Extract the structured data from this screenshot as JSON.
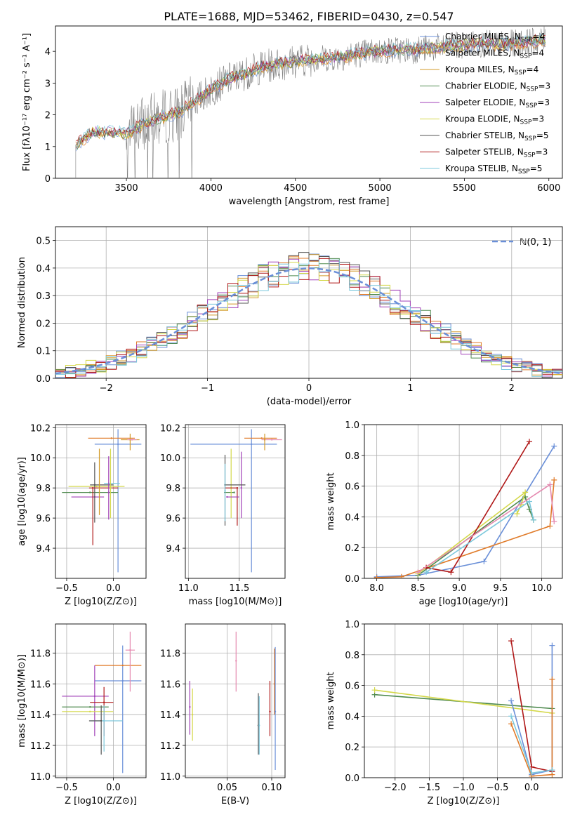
{
  "figure": {
    "title": "PLATE=1688, MJD=53462, FIBERID=0430, z=0.547"
  },
  "colors": {
    "Chabrier MILES": "#6a8fd8",
    "Salpeter MILES": "#e07b2a",
    "Kroupa MILES": "#d39b2a",
    "Chabrier ELODIE": "#4f8a4f",
    "Salpeter ELODIE": "#a040b8",
    "Kroupa ELODIE": "#d4d84a",
    "Chabrier STELIB": "#555555",
    "Salpeter STELIB": "#b01818",
    "Kroupa STELIB": "#7cc8dc",
    "gauss": "#6a8fd8",
    "pink": "#e58ab0"
  },
  "chart_data": [
    {
      "id": "spectrum",
      "type": "line",
      "xlabel": "wavelength [Angstrom, rest frame]",
      "ylabel": "Flux [fλ10⁻¹⁷ erg cm⁻² s⁻¹ A⁻¹]",
      "xlim": [
        3080,
        6080
      ],
      "ylim": [
        0,
        4.8
      ],
      "xticks": [
        3500,
        4000,
        4500,
        5000,
        5500,
        6000
      ],
      "yticks": [
        0,
        1,
        2,
        3,
        4
      ],
      "legend": [
        "Chabrier MILES, N_SSP=4",
        "Salpeter MILES, N_SSP=4",
        "Kroupa MILES, N_SSP=4",
        "Chabrier ELODIE, N_SSP=3",
        "Salpeter ELODIE, N_SSP=3",
        "Kroupa ELODIE, N_SSP=3",
        "Chabrier STELIB, N_SSP=5",
        "Salpeter STELIB, N_SSP=3",
        "Kroupa STELIB, N_SSP=5"
      ],
      "legend_labels": [
        {
          "pre": "Chabrier MILES, N",
          "sub": "SSP",
          "post": "=4"
        },
        {
          "pre": "Salpeter MILES, N",
          "sub": "SSP",
          "post": "=4"
        },
        {
          "pre": "Kroupa MILES, N",
          "sub": "SSP",
          "post": "=4"
        },
        {
          "pre": "Chabrier ELODIE, N",
          "sub": "SSP",
          "post": "=3"
        },
        {
          "pre": "Salpeter ELODIE, N",
          "sub": "SSP",
          "post": "=3"
        },
        {
          "pre": "Kroupa ELODIE, N",
          "sub": "SSP",
          "post": "=3"
        },
        {
          "pre": "Chabrier STELIB, N",
          "sub": "SSP",
          "post": "=5"
        },
        {
          "pre": "Salpeter STELIB, N",
          "sub": "SSP",
          "post": "=3"
        },
        {
          "pre": "Kroupa STELIB, N",
          "sub": "SSP",
          "post": "=5"
        }
      ],
      "legend_loc": "upper right",
      "continuum": [
        [
          3200,
          1.05
        ],
        [
          3300,
          1.45
        ],
        [
          3400,
          1.45
        ],
        [
          3500,
          1.4
        ],
        [
          3600,
          1.7
        ],
        [
          3700,
          1.9
        ],
        [
          3800,
          2.05
        ],
        [
          3900,
          2.4
        ],
        [
          4000,
          2.8
        ],
        [
          4100,
          3.1
        ],
        [
          4200,
          3.3
        ],
        [
          4300,
          3.5
        ],
        [
          4400,
          3.6
        ],
        [
          4500,
          3.7
        ],
        [
          4600,
          3.75
        ],
        [
          4700,
          3.8
        ],
        [
          4800,
          3.85
        ],
        [
          4900,
          3.95
        ],
        [
          5000,
          4.0
        ],
        [
          5100,
          4.05
        ],
        [
          5200,
          4.05
        ],
        [
          5300,
          4.1
        ],
        [
          5400,
          4.15
        ],
        [
          5500,
          4.2
        ],
        [
          5600,
          4.25
        ],
        [
          5700,
          4.2
        ],
        [
          5800,
          4.25
        ],
        [
          5900,
          4.3
        ],
        [
          5980,
          4.35
        ]
      ]
    },
    {
      "id": "residuals",
      "type": "line",
      "xlabel": "(data-model)/error",
      "ylabel": "Normed distribution",
      "xlim": [
        -2.5,
        2.5
      ],
      "ylim": [
        0,
        0.55
      ],
      "xticks": [
        -2,
        -1,
        0,
        1,
        2
      ],
      "yticks": [
        0.0,
        0.1,
        0.2,
        0.3,
        0.4,
        0.5
      ],
      "legend": [
        "ℕ(0, 1)"
      ],
      "legend_loc": "upper right",
      "gaussian": {
        "mu": 0,
        "sigma": 1
      }
    },
    {
      "id": "age-vs-Z",
      "type": "scatter",
      "xlabel": "Z [log10(Z/Z⊙)]",
      "ylabel": "age  [log10(age/yr)]",
      "xlim": [
        -0.62,
        0.35
      ],
      "ylim": [
        9.2,
        10.22
      ],
      "xticks": [
        -0.5,
        0.0
      ],
      "yticks": [
        9.4,
        9.6,
        9.8,
        10.0,
        10.2
      ],
      "points": [
        {
          "model": "Chabrier MILES",
          "x": 0.05,
          "y": 10.09,
          "xerr": [
            0.25,
            0.25
          ],
          "yerr": [
            0.85,
            0.1
          ]
        },
        {
          "model": "Salpeter MILES",
          "x": -0.02,
          "y": 10.13,
          "xerr": [
            0.25,
            0.25
          ],
          "yerr": [
            0.0,
            0.0
          ]
        },
        {
          "model": "Kroupa MILES",
          "x": 0.18,
          "y": 10.12,
          "xerr": [
            0.1,
            0.1
          ],
          "yerr": [
            0.07,
            0.04
          ]
        },
        {
          "model": "Chabrier ELODIE",
          "x": -0.25,
          "y": 9.77,
          "xerr": [
            0.3,
            0.3
          ],
          "yerr": [
            0.0,
            0.0
          ]
        },
        {
          "model": "Salpeter ELODIE",
          "x": -0.2,
          "y": 9.74,
          "xerr": [
            0.25,
            0.1
          ],
          "yerr": [
            0.0,
            0.0
          ]
        },
        {
          "model": "Kroupa ELODIE",
          "x": -0.18,
          "y": 9.81,
          "xerr": [
            0.3,
            0.3
          ],
          "yerr": [
            0.0,
            0.0
          ]
        },
        {
          "model": "Chabrier STELIB",
          "x": -0.2,
          "y": 9.82,
          "xerr": [
            0.05,
            0.2
          ],
          "yerr": [
            0.25,
            0.15
          ]
        },
        {
          "model": "Salpeter STELIB",
          "x": -0.22,
          "y": 9.8,
          "xerr": [
            0.04,
            0.27
          ],
          "yerr": [
            0.38,
            0.0
          ]
        },
        {
          "model": "Kroupa STELIB",
          "x": -0.05,
          "y": 9.83,
          "xerr": [
            0.05,
            0.12
          ],
          "yerr": [
            0.0,
            0.0
          ]
        },
        {
          "model": "pink",
          "x": 0.2,
          "y": 10.12,
          "xerr": [
            0.05,
            0.05
          ],
          "yerr": [
            0.0,
            0.0
          ]
        },
        {
          "model": "Salpeter ELODIE",
          "x": -0.05,
          "y": 9.77,
          "xerr": [
            0.0,
            0.0
          ],
          "yerr": [
            0.18,
            0.24
          ]
        },
        {
          "model": "Kroupa ELODIE",
          "x": -0.03,
          "y": 9.8,
          "xerr": [
            0.0,
            0.0
          ],
          "yerr": [
            0.2,
            0.26
          ]
        },
        {
          "model": "Kroupa MILES",
          "x": -0.15,
          "y": 9.8,
          "xerr": [
            0.0,
            0.0
          ],
          "yerr": [
            0.18,
            0.26
          ]
        }
      ]
    },
    {
      "id": "age-vs-mass",
      "type": "scatter",
      "xlabel": "mass [log10(M/M⊙)]",
      "ylabel": "",
      "xlim": [
        10.97,
        11.95
      ],
      "ylim": [
        9.2,
        10.22
      ],
      "xticks": [
        11.0,
        11.5
      ],
      "yticks": [
        9.4,
        9.6,
        9.8,
        10.0,
        10.2
      ],
      "points": [
        {
          "model": "Chabrier MILES",
          "x": 11.62,
          "y": 10.09,
          "xerr": [
            0.6,
            0.25
          ],
          "yerr": [
            0.85,
            0.1
          ]
        },
        {
          "model": "Salpeter MILES",
          "x": 11.72,
          "y": 10.13,
          "xerr": [
            0.17,
            0.15
          ],
          "yerr": [
            0.0,
            0.0
          ]
        },
        {
          "model": "pink",
          "x": 11.82,
          "y": 10.12,
          "xerr": [
            0.1,
            0.1
          ],
          "yerr": [
            0.0,
            0.0
          ]
        },
        {
          "model": "Kroupa MILES",
          "x": 11.75,
          "y": 10.12,
          "xerr": [
            0.0,
            0.0
          ],
          "yerr": [
            0.07,
            0.04
          ]
        },
        {
          "model": "Chabrier ELODIE",
          "x": 11.45,
          "y": 9.77,
          "xerr": [
            0.1,
            0.0
          ],
          "yerr": [
            0.0,
            0.0
          ]
        },
        {
          "model": "Salpeter ELODIE",
          "x": 11.52,
          "y": 9.8,
          "xerr": [
            0.0,
            0.0
          ],
          "yerr": [
            0.2,
            0.24
          ]
        },
        {
          "model": "Kroupa ELODIE",
          "x": 11.42,
          "y": 9.8,
          "xerr": [
            0.0,
            0.0
          ],
          "yerr": [
            0.2,
            0.26
          ]
        },
        {
          "model": "Chabrier STELIB",
          "x": 11.36,
          "y": 9.82,
          "xerr": [
            0.0,
            0.2
          ],
          "yerr": [
            0.27,
            0.2
          ]
        },
        {
          "model": "Salpeter STELIB",
          "x": 11.48,
          "y": 9.8,
          "xerr": [
            0.12,
            0.0
          ],
          "yerr": [
            0.25,
            0.0
          ]
        },
        {
          "model": "Kroupa STELIB",
          "x": 11.36,
          "y": 9.78,
          "xerr": [
            0.0,
            0.0
          ],
          "yerr": [
            0.2,
            0.18
          ]
        },
        {
          "model": "Salpeter ELODIE",
          "x": 11.38,
          "y": 9.74,
          "xerr": [
            0.0,
            0.12
          ],
          "yerr": [
            0.0,
            0.0
          ]
        }
      ]
    },
    {
      "id": "massweight-vs-age",
      "type": "line",
      "xlabel": "age  [log10(age/yr)]",
      "ylabel": "mass weight",
      "xlim": [
        7.85,
        10.25
      ],
      "ylim": [
        0,
        1.0
      ],
      "xticks": [
        8.0,
        8.5,
        9.0,
        9.5,
        10.0
      ],
      "yticks": [
        0.0,
        0.2,
        0.4,
        0.6,
        0.8,
        1.0
      ],
      "series": [
        {
          "name": "Chabrier MILES",
          "x": [
            8.0,
            8.5,
            9.3,
            10.15
          ],
          "y": [
            0.01,
            0.02,
            0.11,
            0.86
          ]
        },
        {
          "name": "Salpeter MILES",
          "x": [
            8.0,
            8.3,
            10.1,
            10.15
          ],
          "y": [
            0.005,
            0.01,
            0.34,
            0.64
          ]
        },
        {
          "name": "Chabrier ELODIE",
          "x": [
            8.5,
            9.8,
            9.85,
            9.9
          ],
          "y": [
            0.02,
            0.53,
            0.45,
            0.38
          ]
        },
        {
          "name": "Kroupa ELODIE",
          "x": [
            8.5,
            9.8,
            9.75,
            9.7
          ],
          "y": [
            0.03,
            0.56,
            0.48,
            0.42
          ]
        },
        {
          "name": "Salpeter STELIB",
          "x": [
            8.6,
            8.9,
            9.85
          ],
          "y": [
            0.07,
            0.04,
            0.89
          ]
        },
        {
          "name": "Kroupa STELIB",
          "x": [
            8.6,
            9.85,
            9.9
          ],
          "y": [
            0.04,
            0.5,
            0.38
          ]
        },
        {
          "name": "pink",
          "x": [
            8.5,
            10.1,
            10.15
          ],
          "y": [
            0.04,
            0.61,
            0.37
          ]
        }
      ]
    },
    {
      "id": "mass-vs-Z",
      "type": "scatter",
      "xlabel": "Z [log10(Z/Z⊙)]",
      "ylabel": "mass [log10(M/M⊙)]",
      "xlim": [
        -0.62,
        0.35
      ],
      "ylim": [
        10.99,
        11.99
      ],
      "xticks": [
        -0.5,
        0.0
      ],
      "yticks": [
        11.0,
        11.2,
        11.4,
        11.6,
        11.8
      ],
      "points": [
        {
          "model": "Chabrier MILES",
          "x": 0.1,
          "y": 11.62,
          "xerr": [
            0.3,
            0.2
          ],
          "yerr": [
            0.6,
            0.23
          ]
        },
        {
          "model": "Salpeter MILES",
          "x": 0.1,
          "y": 11.72,
          "xerr": [
            0.3,
            0.2
          ],
          "yerr": [
            0.0,
            0.0
          ]
        },
        {
          "model": "pink",
          "x": 0.18,
          "y": 11.82,
          "xerr": [
            0.05,
            0.05
          ],
          "yerr": [
            0.27,
            0.12
          ]
        },
        {
          "model": "Salpeter ELODIE",
          "x": -0.2,
          "y": 11.52,
          "xerr": [
            0.35,
            0.15
          ],
          "yerr": [
            0.26,
            0.2
          ]
        },
        {
          "model": "Chabrier ELODIE",
          "x": -0.25,
          "y": 11.45,
          "xerr": [
            0.3,
            0.2
          ],
          "yerr": [
            0.0,
            0.0
          ]
        },
        {
          "model": "Kroupa ELODIE",
          "x": -0.25,
          "y": 11.42,
          "xerr": [
            0.3,
            0.25
          ],
          "yerr": [
            0.0,
            0.0
          ]
        },
        {
          "model": "Salpeter STELIB",
          "x": -0.1,
          "y": 11.48,
          "xerr": [
            0.15,
            0.1
          ],
          "yerr": [
            0.22,
            0.1
          ]
        },
        {
          "model": "Kroupa STELIB",
          "x": -0.1,
          "y": 11.36,
          "xerr": [
            0.15,
            0.2
          ],
          "yerr": [
            0.2,
            0.1
          ]
        },
        {
          "model": "Chabrier STELIB",
          "x": -0.13,
          "y": 11.36,
          "xerr": [
            0.13,
            0.0
          ],
          "yerr": [
            0.22,
            0.1
          ]
        }
      ]
    },
    {
      "id": "mass-vs-ebv",
      "type": "scatter",
      "xlabel": "E(B-V)",
      "ylabel": "",
      "xlim": [
        0.003,
        0.115
      ],
      "ylim": [
        10.99,
        11.99
      ],
      "xticks": [
        0.05,
        0.1
      ],
      "yticks": [
        11.0,
        11.2,
        11.4,
        11.6,
        11.8
      ],
      "points": [
        {
          "model": "Salpeter ELODIE",
          "x": 0.008,
          "y": 11.45,
          "xerr": [
            0.0,
            0.0
          ],
          "yerr": [
            0.18,
            0.17
          ]
        },
        {
          "model": "Kroupa ELODIE",
          "x": 0.011,
          "y": 11.4,
          "xerr": [
            0.0,
            0.0
          ],
          "yerr": [
            0.17,
            0.17
          ]
        },
        {
          "model": "pink",
          "x": 0.06,
          "y": 11.75,
          "xerr": [
            0.0,
            0.0
          ],
          "yerr": [
            0.2,
            0.19
          ]
        },
        {
          "model": "Chabrier STELIB",
          "x": 0.085,
          "y": 11.33,
          "xerr": [
            0.0,
            0.0
          ],
          "yerr": [
            0.19,
            0.21
          ]
        },
        {
          "model": "Kroupa STELIB",
          "x": 0.086,
          "y": 11.33,
          "xerr": [
            0.0,
            0.0
          ],
          "yerr": [
            0.19,
            0.19
          ]
        },
        {
          "model": "Salpeter STELIB",
          "x": 0.098,
          "y": 11.42,
          "xerr": [
            0.0,
            0.0
          ],
          "yerr": [
            0.16,
            0.2
          ]
        },
        {
          "model": "Salpeter MILES",
          "x": 0.103,
          "y": 11.6,
          "xerr": [
            0.0,
            0.0
          ],
          "yerr": [
            0.2,
            0.23
          ]
        },
        {
          "model": "Chabrier MILES",
          "x": 0.104,
          "y": 11.42,
          "xerr": [
            0.0,
            0.0
          ],
          "yerr": [
            0.38,
            0.42
          ]
        }
      ]
    },
    {
      "id": "massweight-vs-Z",
      "type": "line",
      "xlabel": "Z [log10(Z/Z⊙)]",
      "ylabel": "mass weight",
      "xlim": [
        -2.45,
        0.45
      ],
      "ylim": [
        0,
        1.0
      ],
      "xticks": [
        -2.0,
        -1.5,
        -1.0,
        -0.5,
        0.0
      ],
      "yticks": [
        0.0,
        0.2,
        0.4,
        0.6,
        0.8,
        1.0
      ],
      "series": [
        {
          "name": "Chabrier ELODIE",
          "x": [
            -2.3,
            0.3
          ],
          "y": [
            0.54,
            0.45
          ]
        },
        {
          "name": "Kroupa ELODIE",
          "x": [
            -2.3,
            0.3
          ],
          "y": [
            0.57,
            0.42
          ]
        },
        {
          "name": "Salpeter STELIB",
          "x": [
            -0.3,
            0.0,
            0.3
          ],
          "y": [
            0.89,
            0.07,
            0.04
          ]
        },
        {
          "name": "Chabrier MILES",
          "x": [
            -0.3,
            0.0,
            0.3,
            0.3
          ],
          "y": [
            0.5,
            0.02,
            0.05,
            0.86
          ]
        },
        {
          "name": "Salpeter MILES",
          "x": [
            -0.3,
            0.0,
            0.3,
            0.3
          ],
          "y": [
            0.35,
            0.01,
            0.02,
            0.64
          ]
        },
        {
          "name": "Kroupa STELIB",
          "x": [
            -0.3,
            0.0,
            0.3
          ],
          "y": [
            0.4,
            0.03,
            0.05
          ]
        }
      ]
    }
  ]
}
